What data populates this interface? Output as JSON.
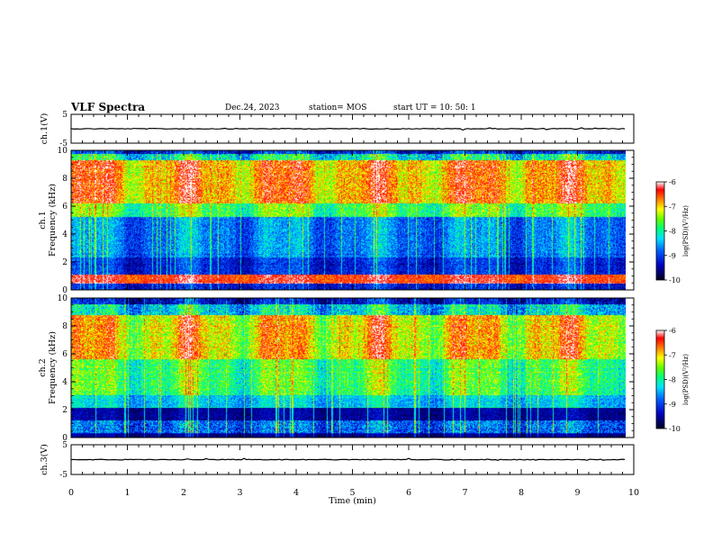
{
  "header": {
    "title": "VLF Spectra",
    "date": "Dec.24, 2023",
    "station": "station= MOS",
    "start": "start  UT =   10: 50: 1"
  },
  "chart_data": [
    {
      "type": "line",
      "name": "ch1-waveform",
      "ylabel": "ch.1(V)",
      "ylim": [
        -5,
        5
      ],
      "yticks": [
        5,
        -5
      ],
      "xlim": [
        0,
        10
      ],
      "baseline": 0,
      "data_end_x": 9.85
    },
    {
      "type": "heatmap",
      "name": "ch1-spectrogram",
      "ylabel_line1": "ch.1",
      "ylabel_line2": "Frequency (kHz)",
      "ylim": [
        0,
        10
      ],
      "yticks": [
        0,
        2,
        4,
        6,
        8,
        10
      ],
      "xlim": [
        0,
        10
      ],
      "data_end_x": 9.85,
      "colorbar": {
        "label": "log(PSD)(V²/Hz)",
        "range": [
          -10,
          -6
        ],
        "ticks": [
          -6,
          -7,
          -8,
          -9,
          -10
        ]
      }
    },
    {
      "type": "heatmap",
      "name": "ch2-spectrogram",
      "ylabel_line1": "ch.2",
      "ylabel_line2": "Frequency (kHz)",
      "ylim": [
        0,
        10
      ],
      "yticks": [
        0,
        2,
        4,
        6,
        8,
        10
      ],
      "xlim": [
        0,
        10
      ],
      "data_end_x": 9.85,
      "colorbar": {
        "label": "log(PSD)(V²/Hz)",
        "range": [
          -10,
          -6
        ],
        "ticks": [
          -6,
          -7,
          -8,
          -9,
          -10
        ]
      }
    },
    {
      "type": "line",
      "name": "ch3-waveform",
      "ylabel": "ch.3(V)",
      "ylim": [
        -5,
        5
      ],
      "yticks": [
        5,
        -5
      ],
      "xlim": [
        0,
        10
      ],
      "baseline": 0,
      "data_end_x": 9.85
    }
  ],
  "xaxis": {
    "label": "Time (min)",
    "ticks": [
      "0",
      "1",
      "2",
      "3",
      "4",
      "5",
      "6",
      "7",
      "8",
      "9",
      "10"
    ]
  },
  "colors": {
    "colormap": [
      "#000020",
      "#0000b4",
      "#0050ff",
      "#00c8ff",
      "#00f0a0",
      "#30ff30",
      "#d0ff00",
      "#ffe000",
      "#ff8000",
      "#ff2000",
      "#ffffff"
    ]
  }
}
